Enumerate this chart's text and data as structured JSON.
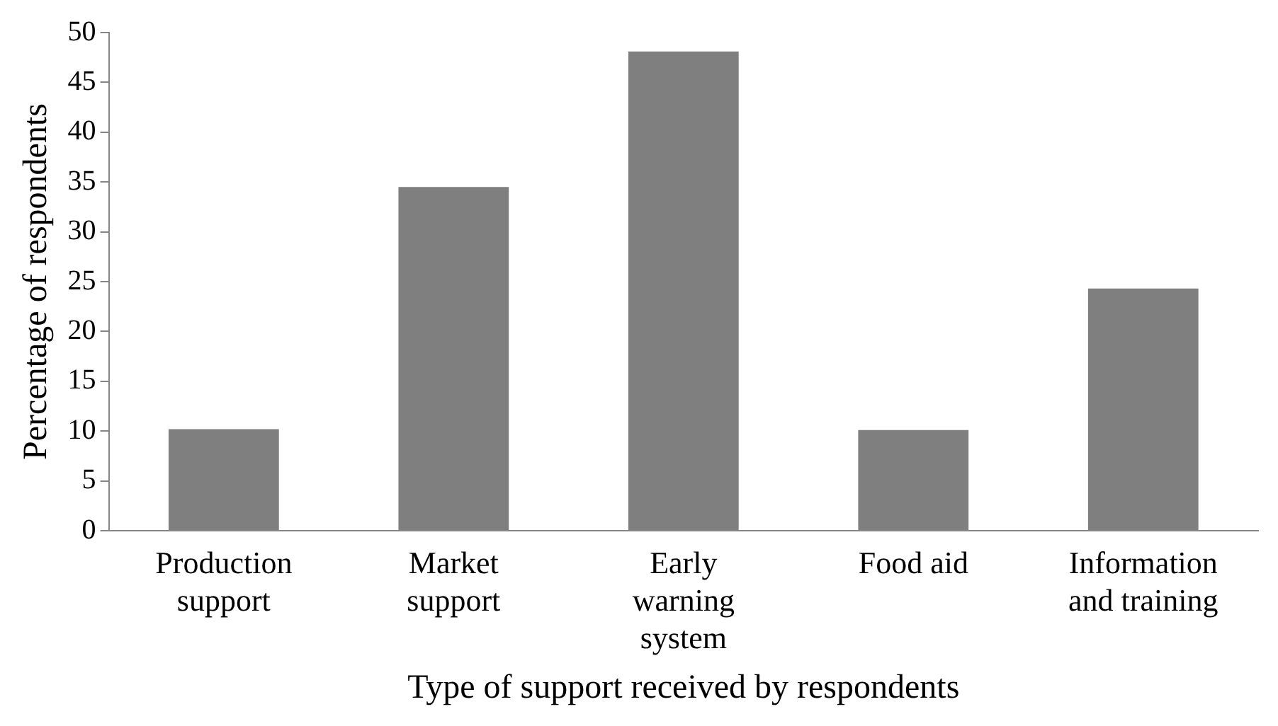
{
  "chart_data": {
    "type": "bar",
    "xlabel": "Type of support received by respondents",
    "ylabel": "Percentage of respondents",
    "categories": [
      "Production support",
      "Market support",
      "Early warning system",
      "Food aid",
      "Information and training"
    ],
    "values": [
      10.2,
      34.5,
      48.1,
      10.1,
      24.3
    ],
    "color": "#7f7f7f",
    "ylim": [
      0,
      50
    ],
    "yticks": [
      0,
      5,
      10,
      15,
      20,
      25,
      30,
      35,
      40,
      45,
      50
    ],
    "grid": false,
    "legend": false
  }
}
